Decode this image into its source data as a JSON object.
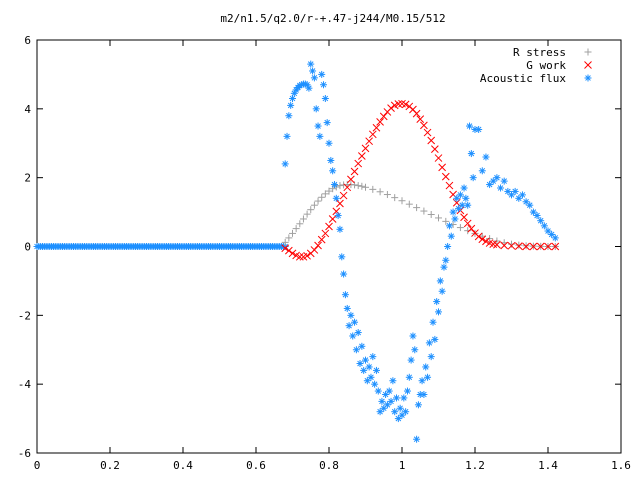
{
  "chart_data": {
    "type": "scatter",
    "title": "m2/n1.5/q2.0/r-+.47-j244/M0.15/512",
    "xlabel": "",
    "ylabel": "",
    "xlim": [
      0,
      1.6
    ],
    "ylim": [
      -6,
      6
    ],
    "grid": false,
    "legend_position": "top-right",
    "x_ticks": [
      "0",
      "0.2",
      "0.4",
      "0.6",
      "0.8",
      "1",
      "1.2",
      "1.4",
      "1.6"
    ],
    "y_ticks": [
      "6",
      "4",
      "2",
      "0",
      "-2",
      "-4",
      "-6"
    ],
    "series": [
      {
        "name": "R stress",
        "marker": "plus",
        "color": "#a0a0a0",
        "points": [
          [
            0.68,
            0.12
          ],
          [
            0.69,
            0.25
          ],
          [
            0.7,
            0.38
          ],
          [
            0.71,
            0.52
          ],
          [
            0.72,
            0.66
          ],
          [
            0.73,
            0.8
          ],
          [
            0.74,
            0.94
          ],
          [
            0.75,
            1.07
          ],
          [
            0.76,
            1.2
          ],
          [
            0.77,
            1.32
          ],
          [
            0.78,
            1.43
          ],
          [
            0.79,
            1.53
          ],
          [
            0.8,
            1.61
          ],
          [
            0.81,
            1.68
          ],
          [
            0.82,
            1.73
          ],
          [
            0.83,
            1.77
          ],
          [
            0.84,
            1.79
          ],
          [
            0.85,
            1.8
          ],
          [
            0.86,
            1.8
          ],
          [
            0.87,
            1.79
          ],
          [
            0.88,
            1.77
          ],
          [
            0.89,
            1.75
          ],
          [
            0.9,
            1.72
          ],
          [
            0.92,
            1.66
          ],
          [
            0.94,
            1.59
          ],
          [
            0.96,
            1.51
          ],
          [
            0.98,
            1.42
          ],
          [
            1.0,
            1.33
          ],
          [
            1.02,
            1.23
          ],
          [
            1.04,
            1.13
          ],
          [
            1.06,
            1.03
          ],
          [
            1.08,
            0.93
          ],
          [
            1.1,
            0.83
          ],
          [
            1.12,
            0.73
          ],
          [
            1.14,
            0.64
          ],
          [
            1.16,
            0.55
          ],
          [
            1.18,
            0.46
          ],
          [
            1.2,
            0.38
          ],
          [
            1.22,
            0.3
          ],
          [
            1.24,
            0.23
          ],
          [
            1.26,
            0.16
          ],
          [
            1.28,
            0.11
          ],
          [
            1.3,
            0.07
          ],
          [
            1.32,
            0.04
          ],
          [
            1.34,
            0.02
          ],
          [
            1.36,
            0.01
          ],
          [
            1.38,
            0.005
          ],
          [
            1.4,
            0.0
          ],
          [
            1.42,
            0.0
          ]
        ]
      },
      {
        "name": "G work",
        "marker": "cross",
        "color": "#ff0000",
        "points": [
          [
            0.68,
            -0.05
          ],
          [
            0.69,
            -0.12
          ],
          [
            0.7,
            -0.2
          ],
          [
            0.71,
            -0.26
          ],
          [
            0.72,
            -0.3
          ],
          [
            0.73,
            -0.3
          ],
          [
            0.74,
            -0.27
          ],
          [
            0.75,
            -0.2
          ],
          [
            0.76,
            -0.1
          ],
          [
            0.77,
            0.03
          ],
          [
            0.78,
            0.2
          ],
          [
            0.79,
            0.38
          ],
          [
            0.8,
            0.58
          ],
          [
            0.81,
            0.8
          ],
          [
            0.82,
            1.02
          ],
          [
            0.83,
            1.25
          ],
          [
            0.84,
            1.48
          ],
          [
            0.85,
            1.72
          ],
          [
            0.86,
            1.95
          ],
          [
            0.87,
            2.18
          ],
          [
            0.88,
            2.41
          ],
          [
            0.89,
            2.63
          ],
          [
            0.9,
            2.85
          ],
          [
            0.91,
            3.06
          ],
          [
            0.92,
            3.26
          ],
          [
            0.93,
            3.45
          ],
          [
            0.94,
            3.62
          ],
          [
            0.95,
            3.78
          ],
          [
            0.96,
            3.91
          ],
          [
            0.97,
            4.02
          ],
          [
            0.98,
            4.1
          ],
          [
            0.99,
            4.14
          ],
          [
            1.0,
            4.15
          ],
          [
            1.01,
            4.13
          ],
          [
            1.02,
            4.07
          ],
          [
            1.03,
            3.98
          ],
          [
            1.04,
            3.86
          ],
          [
            1.05,
            3.7
          ],
          [
            1.06,
            3.52
          ],
          [
            1.07,
            3.31
          ],
          [
            1.08,
            3.08
          ],
          [
            1.09,
            2.83
          ],
          [
            1.1,
            2.57
          ],
          [
            1.11,
            2.3
          ],
          [
            1.12,
            2.03
          ],
          [
            1.13,
            1.77
          ],
          [
            1.14,
            1.51
          ],
          [
            1.15,
            1.27
          ],
          [
            1.16,
            1.05
          ],
          [
            1.17,
            0.85
          ],
          [
            1.18,
            0.67
          ],
          [
            1.19,
            0.52
          ],
          [
            1.2,
            0.39
          ],
          [
            1.21,
            0.29
          ],
          [
            1.22,
            0.21
          ],
          [
            1.23,
            0.15
          ],
          [
            1.24,
            0.1
          ],
          [
            1.25,
            0.07
          ],
          [
            1.26,
            0.05
          ],
          [
            1.28,
            0.03
          ],
          [
            1.3,
            0.02
          ],
          [
            1.32,
            0.01
          ],
          [
            1.34,
            0.0
          ],
          [
            1.36,
            0.0
          ],
          [
            1.38,
            0.0
          ],
          [
            1.4,
            0.0
          ],
          [
            1.42,
            0.0
          ]
        ]
      },
      {
        "name": "Acoustic flux",
        "marker": "star",
        "color": "#1e90ff",
        "points": [
          [
            0.68,
            2.4
          ],
          [
            0.685,
            3.2
          ],
          [
            0.69,
            3.8
          ],
          [
            0.695,
            4.1
          ],
          [
            0.7,
            4.3
          ],
          [
            0.705,
            4.45
          ],
          [
            0.71,
            4.55
          ],
          [
            0.715,
            4.62
          ],
          [
            0.72,
            4.68
          ],
          [
            0.725,
            4.7
          ],
          [
            0.73,
            4.72
          ],
          [
            0.735,
            4.72
          ],
          [
            0.74,
            4.7
          ],
          [
            0.745,
            4.6
          ],
          [
            0.75,
            5.3
          ],
          [
            0.755,
            5.1
          ],
          [
            0.76,
            4.9
          ],
          [
            0.765,
            4.0
          ],
          [
            0.77,
            3.5
          ],
          [
            0.775,
            3.2
          ],
          [
            0.78,
            5.0
          ],
          [
            0.785,
            4.7
          ],
          [
            0.79,
            4.3
          ],
          [
            0.795,
            3.6
          ],
          [
            0.8,
            3.0
          ],
          [
            0.805,
            2.5
          ],
          [
            0.81,
            2.2
          ],
          [
            0.815,
            1.8
          ],
          [
            0.82,
            1.4
          ],
          [
            0.825,
            0.9
          ],
          [
            0.83,
            0.5
          ],
          [
            0.835,
            -0.3
          ],
          [
            0.84,
            -0.8
          ],
          [
            0.845,
            -1.4
          ],
          [
            0.85,
            -1.8
          ],
          [
            0.855,
            -2.3
          ],
          [
            0.86,
            -2.0
          ],
          [
            0.865,
            -2.6
          ],
          [
            0.87,
            -2.2
          ],
          [
            0.875,
            -3.0
          ],
          [
            0.88,
            -2.5
          ],
          [
            0.885,
            -3.4
          ],
          [
            0.89,
            -2.9
          ],
          [
            0.895,
            -3.6
          ],
          [
            0.9,
            -3.3
          ],
          [
            0.905,
            -3.9
          ],
          [
            0.91,
            -3.5
          ],
          [
            0.915,
            -3.8
          ],
          [
            0.92,
            -3.2
          ],
          [
            0.925,
            -4.0
          ],
          [
            0.93,
            -3.6
          ],
          [
            0.935,
            -4.2
          ],
          [
            0.94,
            -4.8
          ],
          [
            0.945,
            -4.5
          ],
          [
            0.95,
            -4.7
          ],
          [
            0.955,
            -4.3
          ],
          [
            0.96,
            -4.6
          ],
          [
            0.965,
            -4.2
          ],
          [
            0.97,
            -4.5
          ],
          [
            0.975,
            -3.9
          ],
          [
            0.98,
            -4.8
          ],
          [
            0.985,
            -4.4
          ],
          [
            0.99,
            -5.0
          ],
          [
            0.995,
            -4.7
          ],
          [
            1.0,
            -4.9
          ],
          [
            1.005,
            -4.4
          ],
          [
            1.01,
            -4.8
          ],
          [
            1.015,
            -4.2
          ],
          [
            1.02,
            -3.8
          ],
          [
            1.025,
            -3.3
          ],
          [
            1.03,
            -2.6
          ],
          [
            1.035,
            -3.0
          ],
          [
            1.04,
            -5.6
          ],
          [
            1.045,
            -4.6
          ],
          [
            1.05,
            -4.3
          ],
          [
            1.055,
            -3.9
          ],
          [
            1.06,
            -4.3
          ],
          [
            1.065,
            -3.5
          ],
          [
            1.07,
            -3.8
          ],
          [
            1.075,
            -2.8
          ],
          [
            1.08,
            -3.2
          ],
          [
            1.085,
            -2.2
          ],
          [
            1.09,
            -2.7
          ],
          [
            1.095,
            -1.6
          ],
          [
            1.1,
            -1.9
          ],
          [
            1.105,
            -1.0
          ],
          [
            1.11,
            -1.3
          ],
          [
            1.115,
            -0.6
          ],
          [
            1.12,
            -0.4
          ],
          [
            1.125,
            0.0
          ],
          [
            1.13,
            0.6
          ],
          [
            1.135,
            0.3
          ],
          [
            1.14,
            1.0
          ],
          [
            1.145,
            0.8
          ],
          [
            1.15,
            1.4
          ],
          [
            1.155,
            1.1
          ],
          [
            1.16,
            1.5
          ],
          [
            1.165,
            1.2
          ],
          [
            1.17,
            1.7
          ],
          [
            1.175,
            1.4
          ],
          [
            1.18,
            1.2
          ],
          [
            1.185,
            3.5
          ],
          [
            1.19,
            2.7
          ],
          [
            1.195,
            2.0
          ],
          [
            1.2,
            3.4
          ],
          [
            1.21,
            3.4
          ],
          [
            1.22,
            2.2
          ],
          [
            1.23,
            2.6
          ],
          [
            1.24,
            1.8
          ],
          [
            1.25,
            1.9
          ],
          [
            1.26,
            2.0
          ],
          [
            1.27,
            1.7
          ],
          [
            1.28,
            1.9
          ],
          [
            1.29,
            1.6
          ],
          [
            1.3,
            1.5
          ],
          [
            1.31,
            1.6
          ],
          [
            1.32,
            1.4
          ],
          [
            1.33,
            1.5
          ],
          [
            1.34,
            1.3
          ],
          [
            1.35,
            1.2
          ],
          [
            1.36,
            1.0
          ],
          [
            1.37,
            0.9
          ],
          [
            1.38,
            0.75
          ],
          [
            1.39,
            0.6
          ],
          [
            1.4,
            0.45
          ],
          [
            1.41,
            0.35
          ],
          [
            1.42,
            0.25
          ]
        ],
        "baseline": {
          "x_from": 0.0,
          "x_to": 0.68,
          "y": 0
        }
      }
    ]
  },
  "colors": {
    "r_stress": "#a0a0a0",
    "g_work": "#ff0000",
    "acoustic": "#1e90ff",
    "axis": "#000000"
  }
}
